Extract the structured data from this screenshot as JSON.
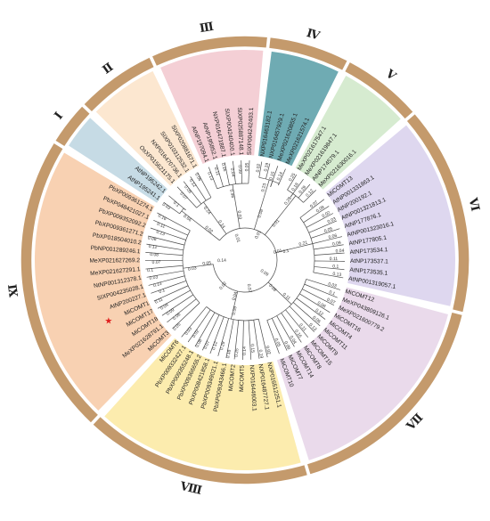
{
  "groups": [
    {
      "numeral": "Ⅰ",
      "color": "#bcd5e0",
      "members": [
        "AtNP195241.1",
        "AtNP195242.1"
      ]
    },
    {
      "numeral": "Ⅱ",
      "color": "#fbe3c8",
      "members": [
        "OsXP015621175.1",
        "NXP016470736.1",
        "SIXP010312532.1",
        "SIXP020881671.1"
      ]
    },
    {
      "numeral": "Ⅲ",
      "color": "#f2c7ce",
      "members": [
        "AtNP197094.1",
        "AtNP195852.1",
        "NXP016471887.1",
        "SIXP004240400.1",
        "SIXP025887148.1",
        "SIXP004242403.1"
      ]
    },
    {
      "numeral": "Ⅳ",
      "color": "#3f8f9a",
      "members": [
        "NXP016463182.1",
        "NXP016457929.1",
        "MeXP021620855.1",
        "MeXP021621574.1"
      ]
    },
    {
      "numeral": "Ⅴ",
      "color": "#cfe8c8",
      "members": [
        "MeXP021617547.1",
        "MeXP021619847.1",
        "AtNP174579.1",
        "MeXP021630016.1"
      ]
    },
    {
      "numeral": "Ⅵ",
      "color": "#d8d0ec",
      "members": [
        "MiCOMT13",
        "AtNP001331863.1",
        "AtNP200192.1",
        "AtNP001321813.1",
        "AtNP177876.1",
        "AtNP001323016.1",
        "AtNP177805.1",
        "AtNP173534.1",
        "AtNP173537.1",
        "AtNP173535.1",
        "AtNP001319057.1"
      ]
    },
    {
      "numeral": "Ⅶ",
      "color": "#e6d3e8",
      "members": [
        "MiCOMT12",
        "MeXP043809126.1",
        "MeXP021600779.2",
        "MiCOMT16",
        "MiCOMT4",
        "MiCOMT11",
        "MiCOMT9",
        "MiCOMT15",
        "MiCOMT8",
        "MiCOMT14",
        "MiCOMT7",
        "MiCOMT10"
      ]
    },
    {
      "numeral": "Ⅷ",
      "color": "#fbe9a0",
      "members": [
        "NXP016512251.1",
        "NXP016487727.1",
        "NXP016446003.1",
        "MiCOMT5",
        "MiCOMT2",
        "PbXP009343466.1",
        "PbXP009349021.1",
        "PbXP008421858.1",
        "PbXP009366655.2",
        "PbXP009355248.1",
        "PbXP009332427.1",
        "MiCOMT6"
      ]
    },
    {
      "numeral": "Ⅸ",
      "color": "#f7c9a4",
      "members": [
        "MiCOMT3",
        "MeXP021628791.1",
        "MiCOMT18",
        "MiCOMT17",
        "MiCOMT1",
        "AtNP200227.1",
        "SIXP004235028.1",
        "NtNP001312378.1",
        "MeXP021627291.1",
        "MeXP021627269.2",
        "PbNP001289246.1",
        "PbXP018504010.2",
        "PbXP009361271.2",
        "PbXP009352092.2",
        "PbXP048421027.1",
        "PbXP009361274.1"
      ]
    }
  ],
  "starred": "MiCOMT1",
  "star_glyph": "★",
  "branch_lengths": {
    "root": [
      "0.01",
      "0.01",
      "0.01",
      "0.09",
      "0.07",
      "0.02",
      "0.14"
    ],
    "inner": [
      "0.66",
      "0.24",
      "0.46",
      "0.23",
      "0.28",
      "0.21",
      "0.11",
      "0.09",
      "0.03",
      "0.02",
      "0.14",
      "0.03",
      "0.08",
      "0.01",
      "0.1",
      "0.06",
      "0.04",
      "0.05"
    ],
    "tips": [
      "0.03",
      "0.1",
      "0.07",
      "0.08",
      "0.12",
      "0.06",
      "0.13",
      "0.11",
      "0.16",
      "0.04",
      "0.09",
      "0.05",
      "0.02",
      "0.19",
      "0.15",
      "0.14",
      "0.25",
      "0.18",
      "0.29",
      "0.12",
      "0.07",
      "0.08",
      "0.02",
      "0.03",
      "0.05",
      "0.06",
      "0.09",
      "0.04",
      "0.11",
      "0.1",
      "0.13"
    ]
  },
  "colors": {
    "ring": "#c49a6c",
    "ring_border": "#ffffff",
    "branch": "#4a4a4a",
    "star": "#e02020",
    "text": "#222222"
  }
}
